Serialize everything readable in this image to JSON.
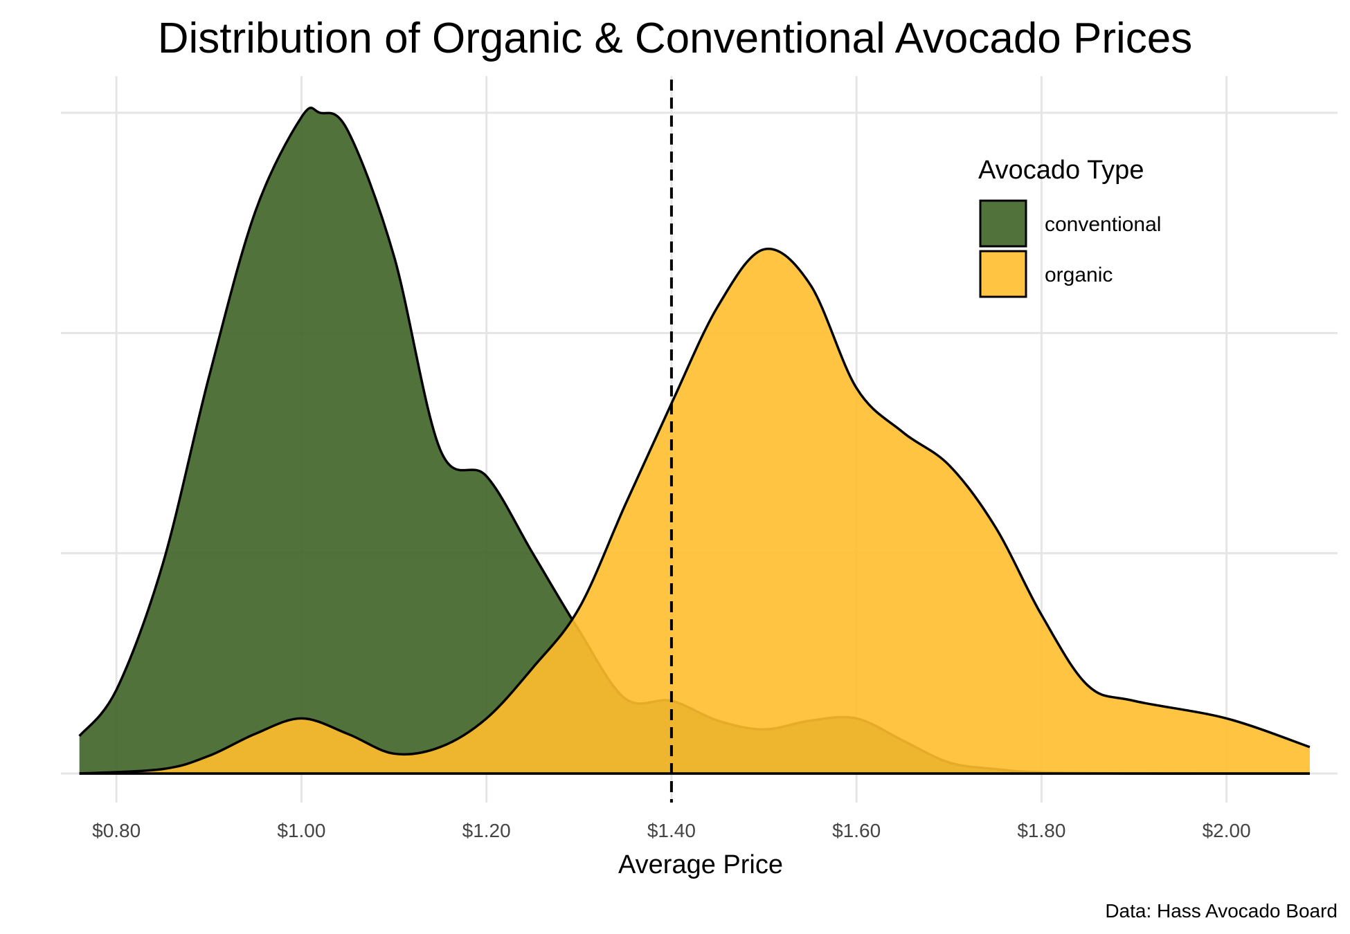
{
  "chart_data": {
    "type": "area",
    "subtype": "density",
    "title": "Distribution of Organic & Conventional Avocado Prices",
    "xlabel": "Average Price",
    "ylabel": "",
    "caption": "Data: Hass Avocado Board",
    "xlim": [
      0.74,
      2.12
    ],
    "ylim": [
      0,
      3.0
    ],
    "x_tick_values": [
      0.8,
      1.0,
      1.2,
      1.4,
      1.6,
      1.8,
      2.0
    ],
    "x_tick_labels": [
      "$0.80",
      "$1.00",
      "$1.20",
      "$1.40",
      "$1.60",
      "$1.80",
      "$2.00"
    ],
    "y_gridlines": [
      0,
      1,
      2,
      3
    ],
    "y_tick_labels_shown": false,
    "grid": true,
    "reference_line": {
      "x": 1.4,
      "style": "dashed",
      "color": "#000000"
    },
    "legend": {
      "title": "Avocado Type",
      "position": "top-right"
    },
    "series": [
      {
        "name": "conventional",
        "color": "#3f6326",
        "opacity": 0.9,
        "x": [
          0.76,
          0.8,
          0.85,
          0.9,
          0.95,
          1.0,
          1.02,
          1.05,
          1.1,
          1.15,
          1.2,
          1.25,
          1.3,
          1.35,
          1.4,
          1.45,
          1.5,
          1.55,
          1.6,
          1.65,
          1.7,
          1.75,
          1.8,
          1.9,
          2.0,
          2.09
        ],
        "y": [
          0.17,
          0.38,
          0.95,
          1.8,
          2.55,
          2.98,
          3.0,
          2.92,
          2.35,
          1.47,
          1.35,
          1.0,
          0.65,
          0.34,
          0.33,
          0.24,
          0.2,
          0.24,
          0.25,
          0.15,
          0.05,
          0.02,
          0.005,
          0.0,
          0.0,
          0.0
        ]
      },
      {
        "name": "organic",
        "color": "#ffbe2e",
        "opacity": 0.9,
        "x": [
          0.76,
          0.85,
          0.9,
          0.95,
          1.0,
          1.05,
          1.1,
          1.15,
          1.2,
          1.25,
          1.3,
          1.35,
          1.4,
          1.45,
          1.5,
          1.55,
          1.6,
          1.65,
          1.7,
          1.75,
          1.8,
          1.85,
          1.9,
          2.0,
          2.09
        ],
        "y": [
          0.0,
          0.02,
          0.08,
          0.18,
          0.25,
          0.18,
          0.09,
          0.12,
          0.25,
          0.48,
          0.75,
          1.22,
          1.68,
          2.12,
          2.38,
          2.22,
          1.75,
          1.55,
          1.4,
          1.12,
          0.72,
          0.4,
          0.33,
          0.25,
          0.12
        ]
      }
    ]
  }
}
